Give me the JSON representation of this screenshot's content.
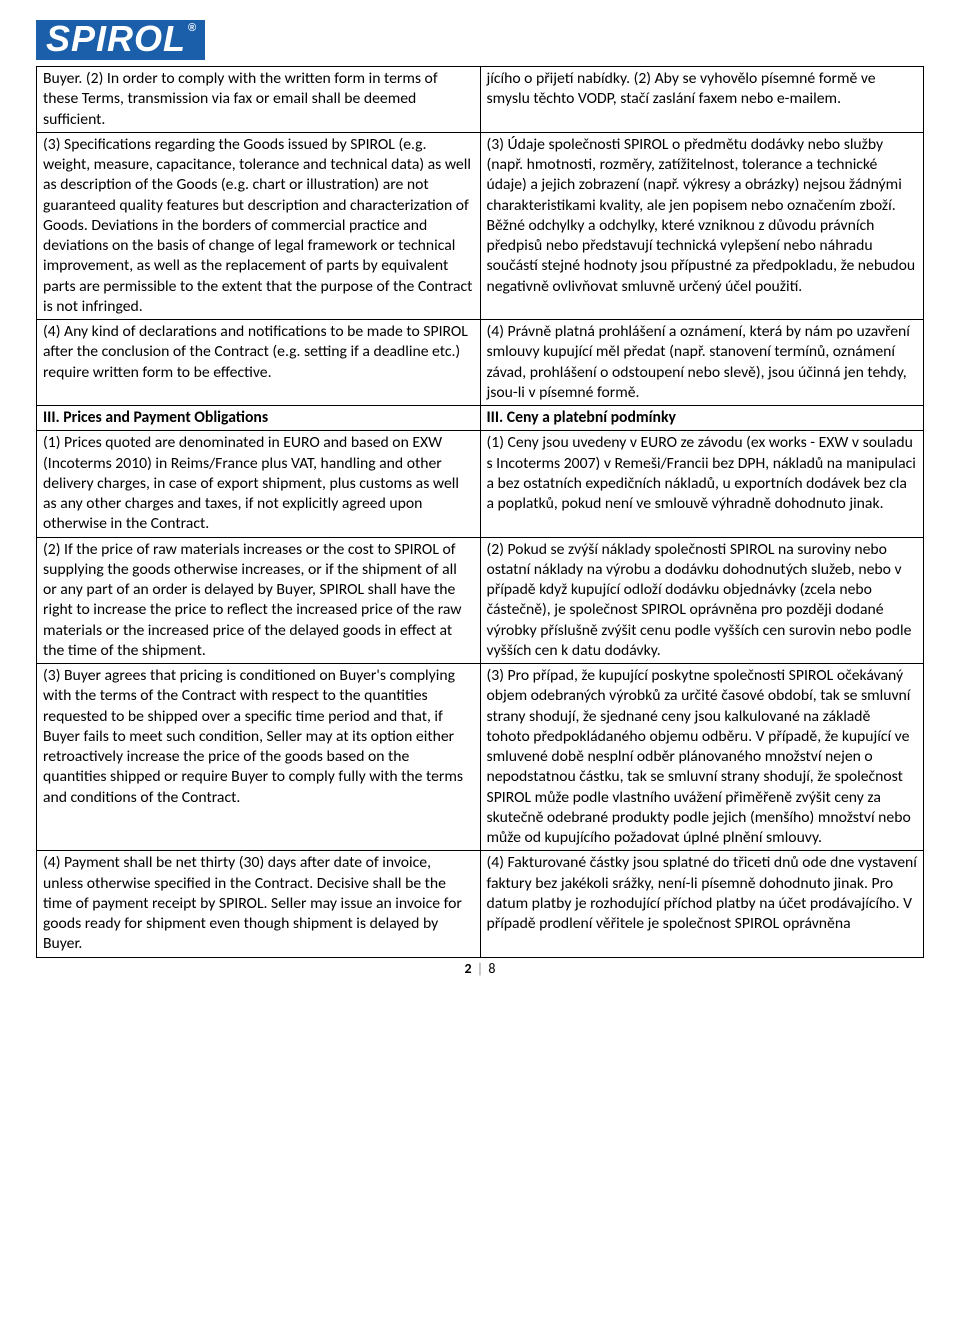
{
  "logo": {
    "text": "SPIROL",
    "reg": "®"
  },
  "colors": {
    "brand_bg": "#1b5faa",
    "brand_fg": "#ffffff",
    "border": "#000000",
    "text": "#000000",
    "page_bg": "#ffffff"
  },
  "pagination": {
    "current": "2",
    "sep": "|",
    "total": "8"
  },
  "rows": [
    {
      "left": "Buyer.\n(2)  In order to comply with the written form in terms of these Terms, transmission via fax or email shall be deemed sufficient.",
      "right": "jícího o přijetí nabídky.\n(2)  Aby se vyhovělo písemné formě ve smyslu těchto VODP, stačí zaslání faxem nebo e-mailem."
    },
    {
      "left": "(3)  Specifications regarding the Goods issued by SPIROL (e.g. weight, measure, capacitance, tolerance and technical data) as well as description of the Goods (e.g. chart or illustration) are not guaranteed quality features but description and characterization of Goods. Deviations in the borders of commercial practice and deviations on the basis of change of legal framework or technical improvement, as well as the replacement of parts by equivalent parts are permissible to the extent that the purpose of the Contract is not infringed.",
      "right": "(3)  Údaje společnosti SPIROL o předmětu dodávky nebo služby (např. hmotnosti, rozměry, zatížitelnost, tolerance a technické údaje) a jejich zobrazení (např. výkresy a obrázky) nejsou žádnými charakteristikami kvality, ale jen popisem nebo označením zboží. Běžné odchylky a odchylky, které vzniknou z důvodu právních předpisů nebo představují technická vylepšení nebo náhradu součástí stejné hodnoty jsou přípustné za předpokladu, že nebudou negativně ovlivňovat smluvně určený účel použití."
    },
    {
      "left": "(4)  Any kind of declarations and notifications to be made to SPIROL after the conclusion of the Contract (e.g. setting if a deadline etc.) require written form to be effective.",
      "right": "(4)  Právně platná prohlášení a oznámení, která by nám po uzavření smlouvy kupující měl předat (např. stano­vení termínů, oznámení závad, prohlášení o od­stoupení nebo slevě), jsou účinná jen tehdy, jsou-li v písemné formě."
    },
    {
      "left_heading": "III.   Prices and Payment Obligations",
      "right_heading": "III.   Ceny a platební podmínky"
    },
    {
      "left": "(1)  Prices quoted are denominated in EURO and based on EXW (Incoterms 2010) in Reims/France plus VAT, handling and other delivery charges, in case of export shipment, plus customs as well as any other charges and taxes, if not explicitly agreed upon otherwise in the Contract.",
      "right": "(1)  Ceny jsou uvedeny v EURO ze závodu (ex works - EXW v souladu s Incoterms 2007) v Remeši/Francii bez DPH, nákladů na manipulaci a bez ostatních expe­dičních nákladů, u exportních dodávek bez cla a pop­latků, pokud není ve smlouvě výhradně dohodnuto jinak."
    },
    {
      "left": "(2)  If the price of raw materials increases or the cost to SPIROL of supplying the goods otherwise increases, or if the shipment of all or any part of an order is delayed by Buyer, SPIROL shall have the right to increase the price to reflect the increased price of the raw materials or the increased price of the delayed goods in effect at the time of the shipment.",
      "right": "(2)  Pokud se zvýší náklady společnosti SPIROL na suroviny nebo ostatní náklady na výrobu a dodávku dohodnutých služeb, nebo v případě když kupující od­loží dodávku objednávky (zcela nebo částečně), je společnost SPIROL oprávněna pro později dodané výrobky příslušně zvýšit cenu podle vyšších cen surovin nebo podle vyšších cen k datu dodávky."
    },
    {
      "left": "(3)  Buyer agrees that pricing is conditioned on Buyer's complying with the terms of the Contract with respect to the quantities requested to be shipped over a spe­cific time period and that, if Buyer fails to meet such condition, Seller may at its option either retroactively increase the price of the goods based on the quantities shipped or require Buyer to comply fully with the terms and conditions of the Contract.",
      "right": "(3)  Pro případ, že kupující poskytne společnosti SPIROL očekávaný objem odebraných výrobků za určité časové období, tak se smluvní strany shodují, že sjednané ceny jsou kalkulované na základě tohoto předpokládaného objemu odběru. V případě, že kupující ve smluvené době nesplní odběr plánovaného množství nejen o nepodstatnou částku, tak se smluvní strany shodují, že společnost SPIROL může podle vlastního uvážení přiměřeně zvýšit ceny za skutečně odebrané produkty podle jejich (menšího) množství nebo může od kupu­jícího požadovat úplné plnění smlouvy."
    },
    {
      "left": "(4)  Payment shall be net thirty (30) days after date of invoice, unless otherwise specified in the Contract. Decisive shall be the time of payment receipt by SPIROL. Seller may issue an invoice for goods ready for shipment even though shipment is delayed by Buyer.",
      "right": "(4)  Fakturované částky jsou splatné do třiceti dnů ode dne vystavení faktury bez jakékoli srážky, není-li písemně dohodnuto jinak. Pro datum platby je rozh­odující příchod platby na účet prodávajícího. V případě prodlení věřitele je společnost SPIROL  oprávněna"
    }
  ]
}
